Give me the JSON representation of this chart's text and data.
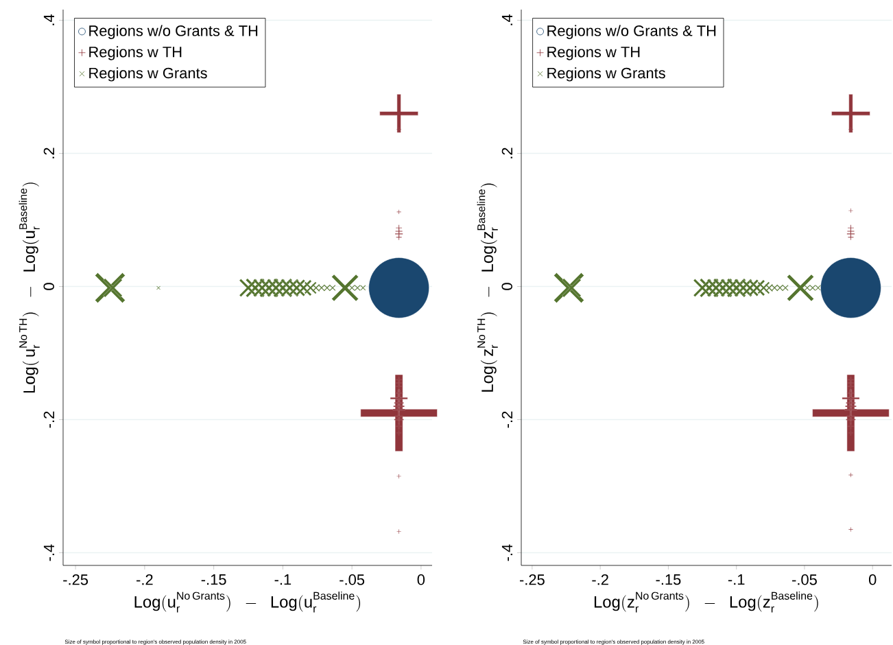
{
  "chart_data": [
    {
      "type": "bubble",
      "xlabel": "\\mathrm{Log(u}_{\\mathrm{r}}^{\\mathrm{No\\,Grants}}\\mathrm{)\\ \\ -\\ \\ Log(u}_{\\mathrm{r}}^{\\mathrm{Baseline}}\\mathrm{)}",
      "ylabel": "\\mathrm{Log(\\,u}_{\\mathrm{r}}^{\\mathrm{No\\,TH}}\\mathrm{)\\ \\ -\\ \\ Log(u}_{\\mathrm{r}}^{\\mathrm{Baseline}}\\mathrm{)}",
      "annotations": [
        "Size of symbol proportional to region's observed population density in 2005"
      ],
      "xlim": [
        -0.259,
        0.008
      ],
      "ylim": [
        -0.419,
        0.416
      ],
      "xticks": [
        {
          "value": -0.25,
          "label": "-.25"
        },
        {
          "value": -0.2,
          "label": "-.2"
        },
        {
          "value": -0.15,
          "label": "-.15"
        },
        {
          "value": -0.1,
          "label": "-.1"
        },
        {
          "value": -0.05,
          "label": "-.05"
        },
        0
      ],
      "yticks": [
        {
          "value": -0.4,
          "label": "-.4"
        },
        {
          "value": -0.2,
          "label": "-.2"
        },
        0,
        {
          "value": 0.2,
          "label": ".2"
        },
        {
          "value": 0.4,
          "label": ".4"
        }
      ],
      "grid": "y",
      "legend": "top left",
      "series": [
        {
          "name": "Regions w/o Grants & TH",
          "color": "#1a476f",
          "marker": "circle",
          "x": [
            -0.016
          ],
          "values": [
            -0.002
          ],
          "sizes": [
            1
          ]
        },
        {
          "name": "Regions w TH",
          "color": "#90353b",
          "marker": "plus",
          "x": [
            -0.016,
            -0.016,
            -0.016,
            -0.016,
            -0.016,
            -0.016,
            -0.016,
            -0.016,
            -0.016,
            -0.016,
            -0.016,
            -0.016,
            -0.016,
            -0.016,
            -0.016,
            -0.016,
            -0.016,
            -0.016,
            -0.016,
            -0.016,
            -0.016,
            -0.016
          ],
          "values": [
            0.26,
            0.236,
            0.112,
            0.088,
            0.083,
            0.079,
            0.074,
            -0.14,
            -0.145,
            -0.15,
            -0.16,
            -0.168,
            -0.175,
            -0.18,
            -0.185,
            -0.19,
            -0.195,
            -0.2,
            -0.21,
            -0.22,
            -0.285,
            -0.368
          ],
          "sizes": [
            0.154,
            0.0019,
            0.0019,
            0.0038,
            0.0049,
            0.0061,
            0.0031,
            0.0038,
            0.0049,
            0.0038,
            0.0061,
            0.031,
            0.0093,
            0.0124,
            0.0154,
            0.6125,
            0.0074,
            0.0093,
            0.0038,
            0.0025,
            0.0019,
            0.0019
          ]
        },
        {
          "name": "Regions w Grants",
          "color": "#55752f",
          "marker": "cross",
          "x": [
            -0.225,
            -0.223,
            -0.19,
            -0.125,
            -0.12,
            -0.115,
            -0.11,
            -0.105,
            -0.1,
            -0.095,
            -0.09,
            -0.085,
            -0.08,
            -0.076,
            -0.072,
            -0.068,
            -0.064,
            -0.055,
            -0.05,
            -0.046,
            -0.042
          ],
          "values": [
            -0.002,
            -0.002,
            -0.002,
            -0.002,
            -0.002,
            -0.002,
            -0.002,
            -0.002,
            -0.002,
            -0.002,
            -0.002,
            -0.002,
            -0.002,
            -0.002,
            -0.002,
            -0.002,
            -0.002,
            -0.002,
            -0.002,
            -0.002,
            -0.002
          ],
          "sizes": [
            0.157,
            0.061,
            0.0025,
            0.055,
            0.061,
            0.055,
            0.061,
            0.055,
            0.061,
            0.055,
            0.049,
            0.044,
            0.025,
            0.0099,
            0.0074,
            0.0074,
            0.0061,
            0.124,
            0.0061,
            0.0061,
            0.0049
          ]
        }
      ]
    },
    {
      "type": "bubble",
      "xlabel": "\\mathrm{Log(z}_{\\mathrm{r}}^{\\mathrm{No\\,Grants}}\\mathrm{)\\ \\ -\\ \\ Log(z}_{\\mathrm{r}}^{\\mathrm{Baseline}}\\mathrm{)}",
      "ylabel": "\\mathrm{Log(\\,z}_{\\mathrm{r}}^{\\mathrm{No\\,TH}}\\mathrm{)\\ \\ -\\ \\ Log(z}_{\\mathrm{r}}^{\\mathrm{Baseline}}\\mathrm{)}",
      "annotations": [
        "Size of symbol proportional to region's observed population density in 2005"
      ],
      "xlim": [
        -0.258,
        0.014
      ],
      "ylim": [
        -0.419,
        0.416
      ],
      "xticks": [
        {
          "value": -0.25,
          "label": "-.25"
        },
        {
          "value": -0.2,
          "label": "-.2"
        },
        {
          "value": -0.15,
          "label": "-.15"
        },
        {
          "value": -0.1,
          "label": "-.1"
        },
        {
          "value": -0.05,
          "label": "-.05"
        },
        0
      ],
      "yticks": [
        {
          "value": -0.4,
          "label": "-.4"
        },
        {
          "value": -0.2,
          "label": "-.2"
        },
        0,
        {
          "value": 0.2,
          "label": ".2"
        },
        {
          "value": 0.4,
          "label": ".4"
        }
      ],
      "grid": "y",
      "legend": "top left",
      "series": [
        {
          "name": "Regions w/o Grants & TH",
          "color": "#1a476f",
          "marker": "circle",
          "x": [
            -0.016
          ],
          "values": [
            -0.002
          ],
          "sizes": [
            1
          ]
        },
        {
          "name": "Regions w TH",
          "color": "#90353b",
          "marker": "plus",
          "x": [
            -0.016,
            -0.016,
            -0.016,
            -0.016,
            -0.016,
            -0.016,
            -0.016,
            -0.016,
            -0.016,
            -0.016,
            -0.016,
            -0.016,
            -0.016,
            -0.016,
            -0.016,
            -0.016,
            -0.016,
            -0.016,
            -0.016,
            -0.016,
            -0.016,
            -0.016
          ],
          "values": [
            0.26,
            0.236,
            0.114,
            0.088,
            0.083,
            0.079,
            0.074,
            -0.14,
            -0.145,
            -0.15,
            -0.16,
            -0.168,
            -0.175,
            -0.18,
            -0.185,
            -0.19,
            -0.195,
            -0.2,
            -0.21,
            -0.22,
            -0.283,
            -0.365
          ],
          "sizes": [
            0.154,
            0.0019,
            0.0019,
            0.0038,
            0.0049,
            0.0061,
            0.0031,
            0.0038,
            0.0049,
            0.0038,
            0.0061,
            0.031,
            0.0093,
            0.0124,
            0.0154,
            0.6125,
            0.0074,
            0.0093,
            0.0038,
            0.0025,
            0.0019,
            0.0019
          ]
        },
        {
          "name": "Regions w Grants",
          "color": "#55752f",
          "marker": "cross",
          "x": [
            -0.223,
            -0.221,
            -0.125,
            -0.12,
            -0.115,
            -0.11,
            -0.105,
            -0.1,
            -0.095,
            -0.09,
            -0.085,
            -0.08,
            -0.076,
            -0.072,
            -0.068,
            -0.064,
            -0.053,
            -0.048,
            -0.044,
            -0.04
          ],
          "values": [
            -0.002,
            -0.002,
            -0.002,
            -0.002,
            -0.002,
            -0.002,
            -0.002,
            -0.002,
            -0.002,
            -0.002,
            -0.002,
            -0.002,
            -0.002,
            -0.002,
            -0.002,
            -0.002,
            -0.002,
            -0.002,
            -0.002,
            -0.002
          ],
          "sizes": [
            0.157,
            0.061,
            0.055,
            0.061,
            0.055,
            0.061,
            0.055,
            0.061,
            0.055,
            0.049,
            0.044,
            0.025,
            0.0099,
            0.0074,
            0.0074,
            0.0061,
            0.124,
            0.0061,
            0.0061,
            0.0049
          ]
        }
      ]
    }
  ]
}
